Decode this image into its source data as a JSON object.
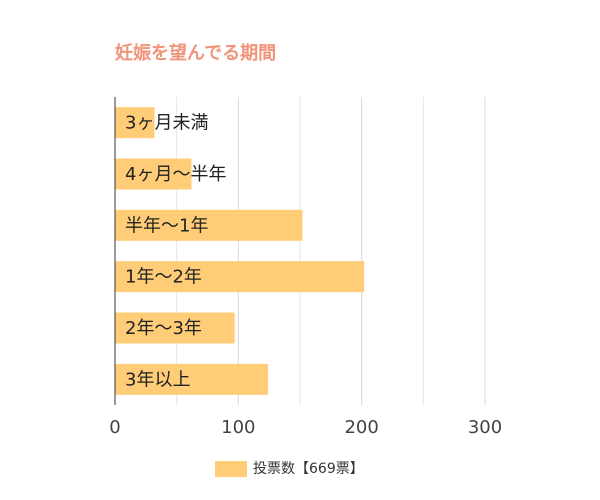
{
  "chart_data": {
    "type": "bar",
    "orientation": "horizontal",
    "title": "妊娠を望んでる期間",
    "categories": [
      "3ヶ月未満",
      "4ヶ月～半年",
      "半年～1年",
      "1年～2年",
      "2年～3年",
      "3年以上"
    ],
    "series": [
      {
        "name": "投票数【669票】",
        "color": "#ffcc77",
        "values": [
          32,
          62,
          152,
          202,
          97,
          124
        ]
      }
    ],
    "xlim": [
      0,
      300
    ],
    "xticks": [
      0,
      100,
      200,
      300
    ],
    "minor_grid": [
      50,
      150,
      250
    ],
    "grid": true,
    "legend": "bottom"
  }
}
